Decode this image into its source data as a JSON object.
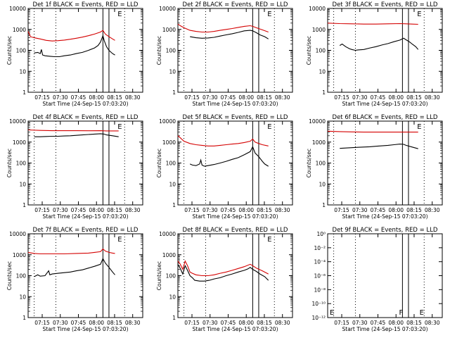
{
  "figure": {
    "title_pattern": "Det {det} BLACK = Events, RED = LLD",
    "xlabel": "Start Time (24-Sep-15 07:03:20)",
    "ylabel": "Counts/sec",
    "xtick_labels": [
      "07:15",
      "07:30",
      "07:45",
      "08:00",
      "08:15",
      "08:30"
    ],
    "colors": {
      "events": "#000000",
      "lld": "#d40000",
      "axes": "#000000"
    }
  },
  "chart_data": [
    {
      "type": "line",
      "title": "Det 1f BLACK = Events, RED = LLD",
      "det": "1f",
      "xlabel": "Start Time (24-Sep-15 07:03:20)",
      "ylabel": "Counts/sec",
      "x_unit": "minutes after 07:03:20",
      "xlim": [
        0,
        95
      ],
      "ylim": [
        1,
        10000
      ],
      "yscale": "log",
      "ytick_labels": [
        "1",
        "10",
        "100",
        "1000",
        "10000"
      ],
      "dotted_lines_x": [
        5,
        23,
        80,
        95
      ],
      "solid_lines_x": [
        62,
        67
      ],
      "markers": [
        {
          "x": 73,
          "label": "E"
        }
      ],
      "series": [
        {
          "name": "BLACK = Events",
          "color": "#000000",
          "x": [
            5,
            8,
            10,
            11,
            12,
            14,
            18,
            22,
            26,
            30,
            35,
            40,
            45,
            50,
            55,
            58,
            60,
            62,
            63,
            65,
            67,
            70,
            72
          ],
          "y": [
            75,
            80,
            70,
            110,
            60,
            55,
            52,
            50,
            50,
            55,
            60,
            70,
            80,
            100,
            130,
            170,
            250,
            500,
            300,
            150,
            100,
            70,
            60
          ]
        },
        {
          "name": "RED = LLD",
          "color": "#d40000",
          "x": [
            0,
            2,
            5,
            10,
            15,
            20,
            25,
            30,
            35,
            40,
            45,
            50,
            55,
            60,
            62,
            64,
            67,
            70,
            72
          ],
          "y": [
            800,
            450,
            400,
            350,
            300,
            280,
            290,
            310,
            340,
            380,
            430,
            500,
            600,
            750,
            900,
            600,
            450,
            350,
            300
          ]
        }
      ]
    },
    {
      "type": "line",
      "title": "Det 2f BLACK = Events, RED = LLD",
      "det": "2f",
      "xlabel": "Start Time (24-Sep-15 07:03:20)",
      "ylabel": "Counts/sec",
      "x_unit": "minutes after 07:03:20",
      "xlim": [
        0,
        95
      ],
      "ylim": [
        1,
        10000
      ],
      "yscale": "log",
      "ytick_labels": [
        "1",
        "10",
        "100",
        "1000",
        "10000"
      ],
      "dotted_lines_x": [
        5,
        23,
        80,
        95
      ],
      "solid_lines_x": [
        62,
        67
      ],
      "markers": [
        {
          "x": 73,
          "label": "E"
        }
      ],
      "series": [
        {
          "name": "BLACK = Events",
          "color": "#000000",
          "x": [
            10,
            15,
            20,
            25,
            30,
            35,
            40,
            45,
            50,
            55,
            60,
            62,
            65,
            68,
            72,
            75
          ],
          "y": [
            450,
            400,
            380,
            390,
            420,
            480,
            550,
            620,
            720,
            850,
            900,
            850,
            700,
            550,
            450,
            350
          ]
        },
        {
          "name": "RED = LLD",
          "color": "#d40000",
          "x": [
            0,
            2,
            5,
            10,
            15,
            20,
            25,
            30,
            35,
            40,
            45,
            50,
            55,
            60,
            62,
            65,
            70,
            75
          ],
          "y": [
            1800,
            1500,
            1200,
            900,
            800,
            750,
            750,
            800,
            900,
            1000,
            1100,
            1250,
            1400,
            1500,
            1400,
            1200,
            950,
            750
          ]
        }
      ]
    },
    {
      "type": "line",
      "title": "Det 3f BLACK = Events, RED = LLD",
      "det": "3f",
      "xlabel": "Start Time (24-Sep-15 07:03:20)",
      "ylabel": "Counts/sec",
      "x_unit": "minutes after 07:03:20",
      "xlim": [
        0,
        95
      ],
      "ylim": [
        1,
        10000
      ],
      "yscale": "log",
      "ytick_labels": [
        "1",
        "10",
        "100",
        "1000",
        "10000"
      ],
      "dotted_lines_x": [
        5,
        23,
        80,
        95
      ],
      "solid_lines_x": [
        62,
        67
      ],
      "markers": [
        {
          "x": 73,
          "label": "E"
        }
      ],
      "series": [
        {
          "name": "BLACK = Events",
          "color": "#000000",
          "x": [
            10,
            12,
            15,
            18,
            20,
            23,
            25,
            30,
            35,
            40,
            45,
            50,
            55,
            60,
            63,
            65,
            68,
            70,
            73,
            75
          ],
          "y": [
            170,
            200,
            150,
            120,
            110,
            100,
            105,
            110,
            130,
            150,
            180,
            210,
            260,
            310,
            380,
            320,
            250,
            200,
            150,
            110
          ]
        },
        {
          "name": "RED = LLD",
          "color": "#d40000",
          "x": [
            0,
            10,
            20,
            30,
            40,
            50,
            60,
            65,
            70,
            75
          ],
          "y": [
            2000,
            1900,
            1850,
            1800,
            1800,
            1850,
            1900,
            1850,
            1800,
            1750
          ]
        }
      ]
    },
    {
      "type": "line",
      "title": "Det 4f BLACK = Events, RED = LLD",
      "det": "4f",
      "xlabel": "Start Time (24-Sep-15 07:03:20)",
      "ylabel": "Counts/sec",
      "x_unit": "minutes after 07:03:20",
      "xlim": [
        0,
        95
      ],
      "ylim": [
        1,
        10000
      ],
      "yscale": "log",
      "ytick_labels": [
        "1",
        "10",
        "100",
        "1000",
        "10000"
      ],
      "dotted_lines_x": [
        5,
        23,
        80,
        95
      ],
      "solid_lines_x": [
        62,
        67
      ],
      "markers": [
        {
          "x": 73,
          "label": "E"
        }
      ],
      "series": [
        {
          "name": "BLACK = Events",
          "color": "#000000",
          "x": [
            5,
            10,
            15,
            20,
            25,
            30,
            35,
            40,
            45,
            50,
            55,
            60,
            63,
            65,
            70,
            75
          ],
          "y": [
            1800,
            1800,
            1850,
            1900,
            1900,
            1950,
            2000,
            2100,
            2200,
            2300,
            2400,
            2500,
            2400,
            2200,
            2000,
            1800
          ]
        },
        {
          "name": "RED = LLD",
          "color": "#d40000",
          "x": [
            0,
            10,
            20,
            30,
            40,
            50,
            60,
            65,
            70,
            75
          ],
          "y": [
            3800,
            3600,
            3500,
            3500,
            3500,
            3450,
            3500,
            3400,
            3400,
            3400
          ]
        }
      ]
    },
    {
      "type": "line",
      "title": "Det 5f BLACK = Events, RED = LLD",
      "det": "5f",
      "xlabel": "Start Time (24-Sep-15 07:03:20)",
      "ylabel": "Counts/sec",
      "x_unit": "minutes after 07:03:20",
      "xlim": [
        0,
        95
      ],
      "ylim": [
        1,
        10000
      ],
      "yscale": "log",
      "ytick_labels": [
        "1",
        "10",
        "100",
        "1000",
        "10000"
      ],
      "dotted_lines_x": [
        5,
        23,
        80,
        95
      ],
      "solid_lines_x": [
        62,
        67
      ],
      "markers": [
        {
          "x": 73,
          "label": "E"
        }
      ],
      "series": [
        {
          "name": "BLACK = Events",
          "color": "#000000",
          "x": [
            10,
            12,
            15,
            18,
            19,
            20,
            22,
            25,
            30,
            35,
            40,
            45,
            50,
            55,
            60,
            62,
            64,
            67,
            70,
            72,
            75
          ],
          "y": [
            90,
            80,
            75,
            90,
            140,
            80,
            70,
            75,
            85,
            100,
            120,
            150,
            180,
            250,
            350,
            600,
            300,
            200,
            120,
            90,
            70
          ]
        },
        {
          "name": "RED = LLD",
          "color": "#d40000",
          "x": [
            0,
            2,
            5,
            10,
            15,
            20,
            25,
            30,
            35,
            40,
            45,
            50,
            55,
            60,
            62,
            64,
            67,
            70,
            75
          ],
          "y": [
            2000,
            1600,
            1100,
            850,
            750,
            700,
            650,
            650,
            700,
            750,
            800,
            850,
            950,
            1100,
            1400,
            1000,
            850,
            750,
            650
          ]
        }
      ]
    },
    {
      "type": "line",
      "title": "Det 6f BLACK = Events, RED = LLD",
      "det": "6f",
      "xlabel": "Start Time (24-Sep-15 07:03:20)",
      "ylabel": "Counts/sec",
      "x_unit": "minutes after 07:03:20",
      "xlim": [
        0,
        95
      ],
      "ylim": [
        1,
        10000
      ],
      "yscale": "log",
      "ytick_labels": [
        "1",
        "10",
        "100",
        "1000",
        "10000"
      ],
      "dotted_lines_x": [
        5,
        23,
        80,
        95
      ],
      "solid_lines_x": [
        62,
        67
      ],
      "markers": [
        {
          "x": 73,
          "label": "E"
        }
      ],
      "series": [
        {
          "name": "BLACK = Events",
          "color": "#000000",
          "x": [
            10,
            15,
            20,
            25,
            30,
            35,
            40,
            45,
            50,
            55,
            60,
            63,
            65,
            70,
            75
          ],
          "y": [
            500,
            520,
            540,
            560,
            580,
            600,
            630,
            660,
            700,
            750,
            800,
            780,
            700,
            580,
            480
          ]
        },
        {
          "name": "RED = LLD",
          "color": "#d40000",
          "x": [
            0,
            10,
            20,
            30,
            40,
            50,
            60,
            70,
            75
          ],
          "y": [
            3300,
            3150,
            3050,
            3000,
            3000,
            3000,
            3000,
            3000,
            3000
          ]
        }
      ]
    },
    {
      "type": "line",
      "title": "Det 7f BLACK = Events, RED = LLD",
      "det": "7f",
      "xlabel": "Start Time (24-Sep-15 07:03:20)",
      "ylabel": "Counts/sec",
      "x_unit": "minutes after 07:03:20",
      "xlim": [
        0,
        95
      ],
      "ylim": [
        1,
        10000
      ],
      "yscale": "log",
      "ytick_labels": [
        "1",
        "10",
        "100",
        "1000",
        "10000"
      ],
      "dotted_lines_x": [
        5,
        23,
        80,
        95
      ],
      "solid_lines_x": [
        62,
        67
      ],
      "markers": [
        {
          "x": 73,
          "label": "E"
        }
      ],
      "series": [
        {
          "name": "BLACK = Events",
          "color": "#000000",
          "x": [
            5,
            8,
            10,
            14,
            17,
            18,
            20,
            25,
            30,
            35,
            40,
            45,
            50,
            55,
            60,
            62,
            64,
            67,
            70,
            72
          ],
          "y": [
            90,
            110,
            95,
            100,
            170,
            110,
            120,
            130,
            140,
            150,
            170,
            190,
            230,
            280,
            350,
            650,
            400,
            250,
            150,
            110
          ]
        },
        {
          "name": "RED = LLD",
          "color": "#d40000",
          "x": [
            0,
            5,
            10,
            20,
            30,
            40,
            50,
            55,
            60,
            62,
            64,
            67,
            70,
            72
          ],
          "y": [
            1300,
            1150,
            1100,
            1100,
            1100,
            1150,
            1200,
            1300,
            1400,
            1900,
            1500,
            1300,
            1200,
            1150
          ]
        }
      ]
    },
    {
      "type": "line",
      "title": "Det 8f BLACK = Events, RED = LLD",
      "det": "8f",
      "xlabel": "Start Time (24-Sep-15 07:03:20)",
      "ylabel": "Counts/sec",
      "x_unit": "minutes after 07:03:20",
      "xlim": [
        0,
        95
      ],
      "ylim": [
        1,
        10000
      ],
      "yscale": "log",
      "ytick_labels": [
        "1",
        "10",
        "100",
        "1000",
        "10000"
      ],
      "dotted_lines_x": [
        5,
        23,
        80,
        95
      ],
      "solid_lines_x": [
        62,
        67
      ],
      "markers": [
        {
          "x": 73,
          "label": "E"
        }
      ],
      "series": [
        {
          "name": "BLACK = Events",
          "color": "#000000",
          "x": [
            0,
            2,
            4,
            6,
            8,
            10,
            12,
            14,
            18,
            22,
            26,
            30,
            35,
            40,
            45,
            50,
            55,
            58,
            60,
            62,
            65,
            68,
            72,
            75
          ],
          "y": [
            350,
            220,
            120,
            300,
            180,
            100,
            80,
            60,
            55,
            55,
            60,
            70,
            80,
            100,
            120,
            150,
            180,
            210,
            250,
            200,
            160,
            120,
            90,
            60
          ]
        },
        {
          "name": "RED = LLD",
          "color": "#d40000",
          "x": [
            0,
            2,
            4,
            6,
            8,
            10,
            12,
            15,
            20,
            25,
            30,
            35,
            40,
            45,
            50,
            55,
            60,
            62,
            65,
            70,
            75
          ],
          "y": [
            500,
            350,
            200,
            500,
            300,
            150,
            130,
            110,
            100,
            100,
            110,
            130,
            150,
            180,
            220,
            270,
            350,
            300,
            230,
            170,
            120
          ]
        }
      ]
    },
    {
      "type": "line",
      "title": "Det 9f BLACK = Events, RED = LLD",
      "det": "9f",
      "xlabel": "Start Time (24-Sep-15 07:03:20)",
      "ylabel": "",
      "x_unit": "minutes after 07:03:20",
      "xlim": [
        0,
        95
      ],
      "ylim": [
        1e-12,
        1
      ],
      "yscale": "log",
      "ytick_labels": [
        "10⁻¹²",
        "10⁻¹⁰",
        "10⁻⁸",
        "10⁻⁶",
        "10⁻⁴",
        "10⁻²",
        "10⁰"
      ],
      "ytick_values": [
        -12,
        -10,
        -8,
        -6,
        -4,
        -2,
        0
      ],
      "dotted_lines_x": [
        5,
        23,
        80,
        95
      ],
      "solid_lines_x": [
        62,
        67
      ],
      "markers": [
        {
          "x": 0.5,
          "label": "E",
          "at_bottom": true
        },
        {
          "x": 58,
          "label": "F",
          "at_bottom": true
        },
        {
          "x": 75,
          "label": "E",
          "at_bottom": true
        }
      ],
      "series": []
    }
  ]
}
